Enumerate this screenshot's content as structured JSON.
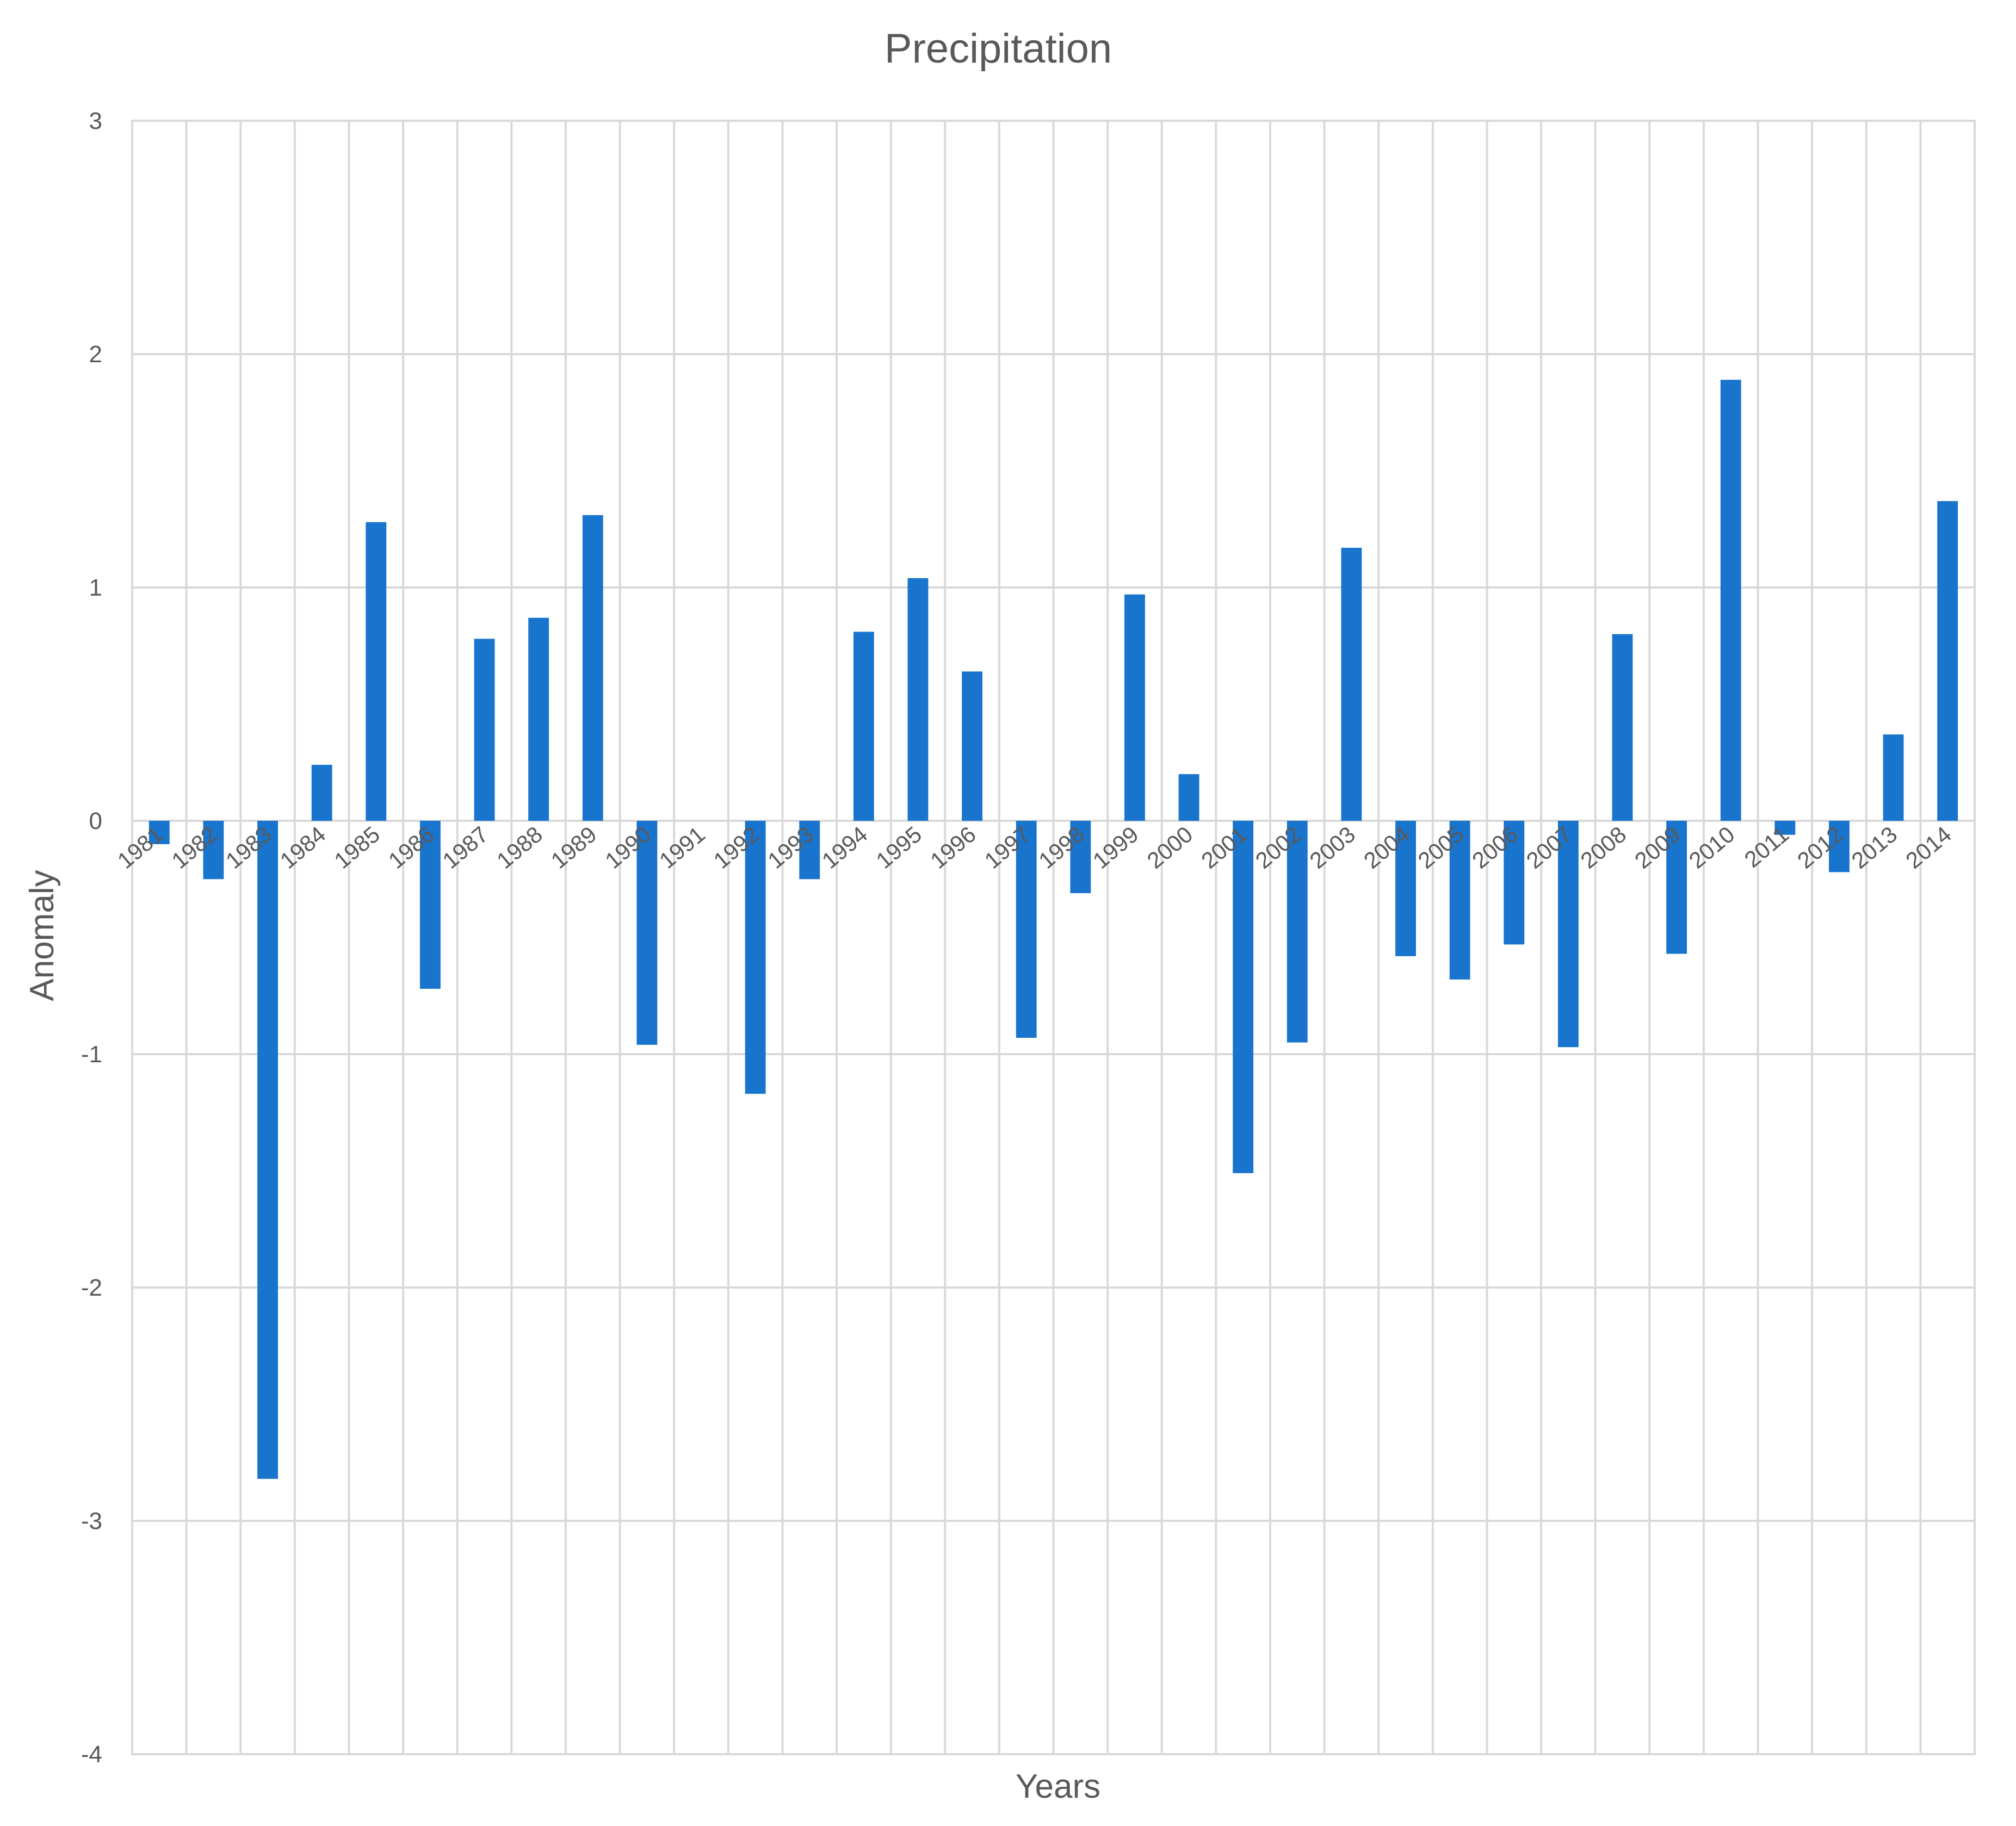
{
  "chart_data": {
    "type": "bar",
    "title": "Precipitation",
    "xlabel": "Years",
    "ylabel": "Anomaly",
    "ylim": [
      -4,
      3
    ],
    "yticks": [
      -4,
      -3,
      -2,
      -1,
      0,
      1,
      2,
      3
    ],
    "grid": true,
    "legend": "none",
    "colors": {
      "bar": "#1874CD",
      "grid": "#d9d9d9",
      "text": "#595959"
    },
    "categories": [
      "1981",
      "1982",
      "1983",
      "1984",
      "1985",
      "1986",
      "1987",
      "1988",
      "1989",
      "1990",
      "1991",
      "1992",
      "1993",
      "1994",
      "1995",
      "1996",
      "1997",
      "1998",
      "1999",
      "2000",
      "2001",
      "2002",
      "2003",
      "2004",
      "2005",
      "2006",
      "2007",
      "2008",
      "2009",
      "2010",
      "2011",
      "2012",
      "2013",
      "2014"
    ],
    "values": [
      -0.1,
      -0.25,
      -2.82,
      0.24,
      1.28,
      -0.72,
      0.78,
      0.87,
      1.31,
      -0.96,
      0.0,
      -1.17,
      -0.25,
      0.81,
      1.04,
      0.64,
      -0.93,
      -0.31,
      0.97,
      0.2,
      -1.51,
      -0.95,
      1.17,
      -0.58,
      -0.68,
      -0.53,
      -0.97,
      0.8,
      -0.57,
      1.89,
      -0.06,
      -0.22,
      0.37,
      1.37
    ]
  }
}
